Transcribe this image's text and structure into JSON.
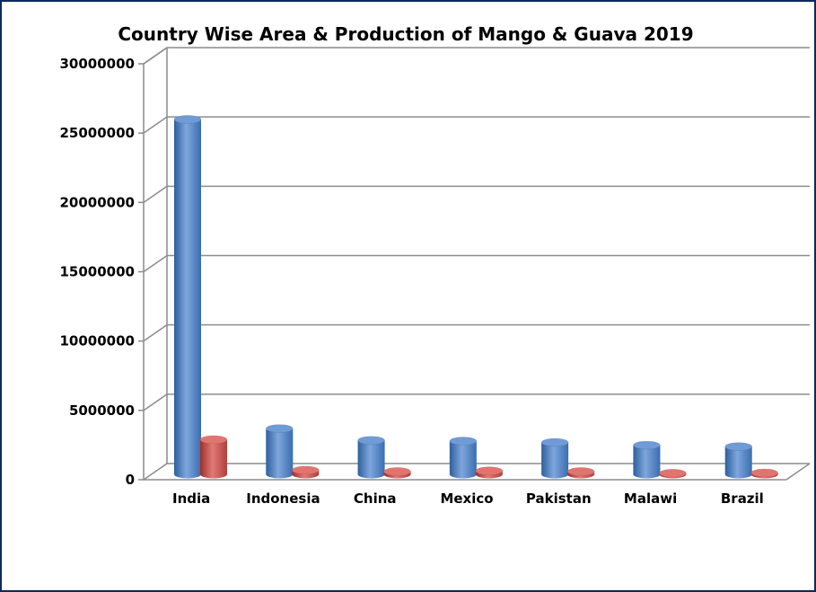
{
  "chart_data": {
    "type": "bar",
    "title": "Country Wise Area & Production of Mango & Guava 2019",
    "categories": [
      "India",
      "Indonesia",
      "China",
      "Mexico",
      "Pakistan",
      "Malawi",
      "Brazil"
    ],
    "series": [
      {
        "values": [
          25600000,
          3300000,
          2450000,
          2400000,
          2300000,
          2100000,
          2000000
        ],
        "color": "#4f81bd"
      },
      {
        "values": [
          2500000,
          300000,
          200000,
          250000,
          200000,
          80000,
          100000
        ],
        "color": "#c0504d"
      }
    ],
    "yticks": [
      "0",
      "5000000",
      "10000000",
      "15000000",
      "20000000",
      "25000000",
      "30000000"
    ],
    "ylim": [
      0,
      30000000
    ],
    "grid": true,
    "legend": "none",
    "style": "3d-cylinder"
  },
  "colors": {
    "frame_border": "#0b2a5c",
    "grid": "#8c8c8c"
  }
}
